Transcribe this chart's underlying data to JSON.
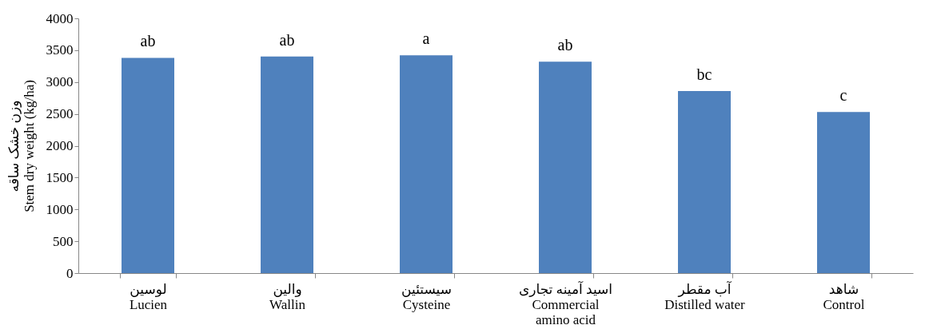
{
  "chart_data": {
    "type": "bar",
    "ylabel": "وزن خشک ساقه\nStem dry weight (kg/ha)",
    "categories": [
      "لوسین\nLucien",
      "والین\nWallin",
      "سیستئین\nCysteine",
      "اسید آمینه تجاری\nCommercial\namino acid",
      "آب مقطر\nDistilled water",
      "شاهد\nControl"
    ],
    "values": [
      3380,
      3400,
      3420,
      3320,
      2860,
      2530
    ],
    "color": "#4f81bd",
    "value_labels": [
      "ab",
      "ab",
      "a",
      "ab",
      "bc",
      "c"
    ],
    "ylim": [
      0,
      4000
    ],
    "yticks": [
      0,
      500,
      1000,
      1500,
      2000,
      2500,
      3000,
      3500,
      4000
    ],
    "grid": false
  }
}
